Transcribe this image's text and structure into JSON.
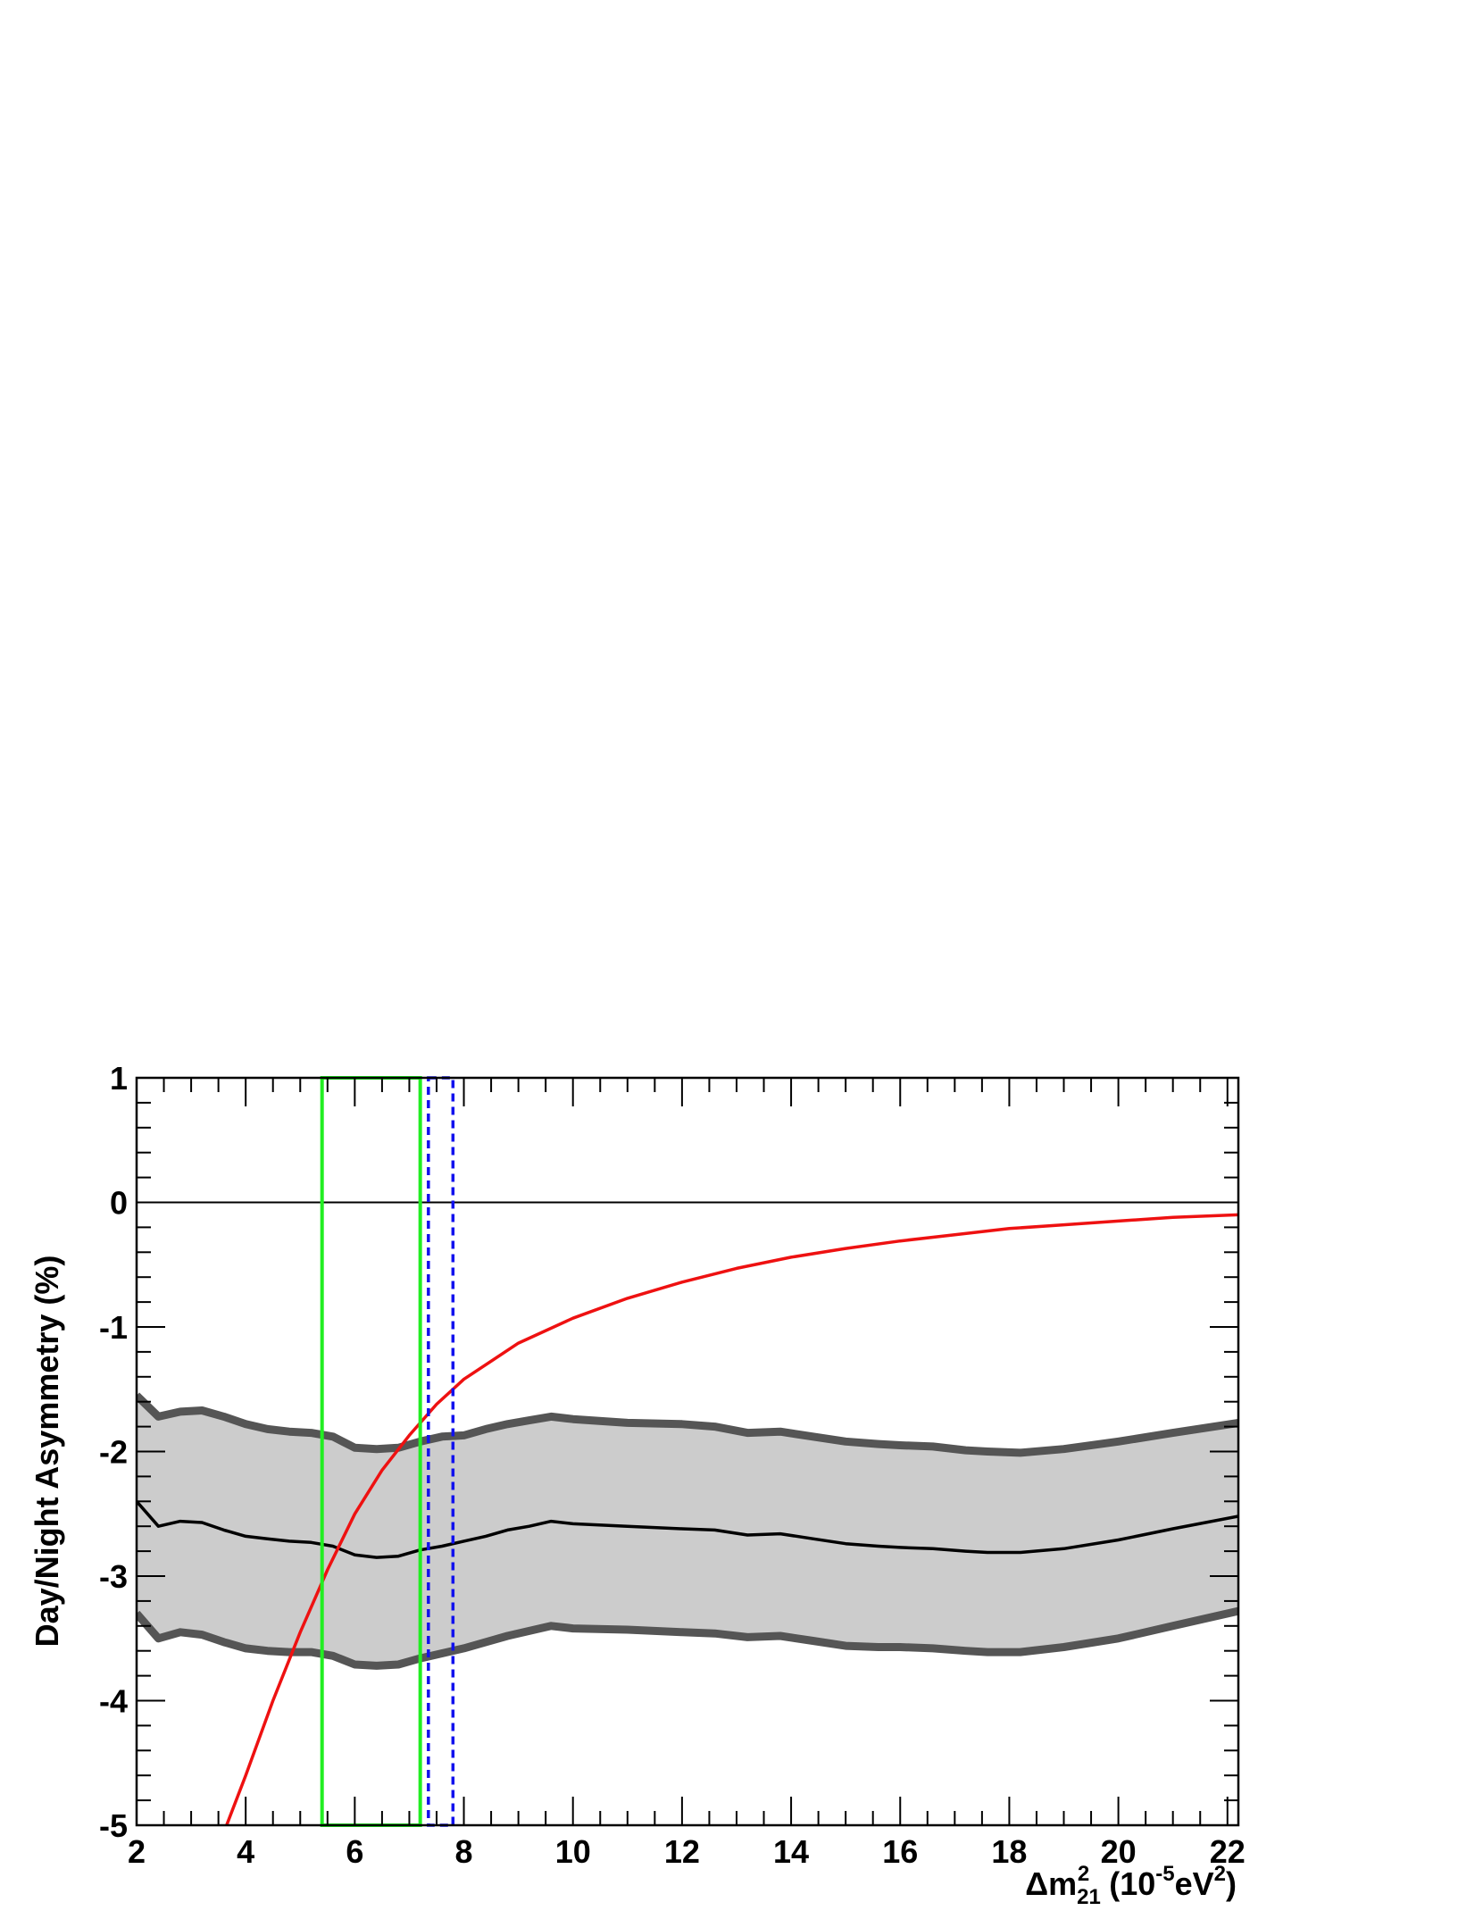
{
  "chart_data": {
    "type": "line",
    "title": "",
    "xlabel": {
      "prefix": "Δm",
      "sup1": "2",
      "sub1": "21",
      "middle": " (10",
      "sup2": "-5",
      "middle2": "eV",
      "sup3": "2",
      "suffix": ")"
    },
    "ylabel": "Day/Night Asymmetry (%)",
    "xlim": [
      2,
      22.2
    ],
    "ylim": [
      -5,
      1
    ],
    "xticks": [
      2,
      4,
      6,
      8,
      10,
      12,
      14,
      16,
      18,
      20,
      22
    ],
    "yticks": [
      -5,
      -4,
      -3,
      -2,
      -1,
      0,
      1
    ],
    "grid": false,
    "colors": {
      "band_fill": "#cccccc",
      "band_edge": "#555555",
      "central": "#000000",
      "red": "#ee1111",
      "green": "#22ee22",
      "blue": "#1111ee"
    },
    "series": [
      {
        "kind": "band_upper",
        "x": [
          2.0,
          2.4,
          2.8,
          3.2,
          3.6,
          4.0,
          4.4,
          4.8,
          5.2,
          5.6,
          6.0,
          6.4,
          6.8,
          7.2,
          7.6,
          8.0,
          8.4,
          8.8,
          9.2,
          9.6,
          10.0,
          11.0,
          12.0,
          12.6,
          13.2,
          13.8,
          14.4,
          15.0,
          15.6,
          16.0,
          16.6,
          17.2,
          17.6,
          18.2,
          19.0,
          20.0,
          21.0,
          22.2
        ],
        "y": [
          -1.55,
          -1.72,
          -1.68,
          -1.67,
          -1.72,
          -1.78,
          -1.82,
          -1.84,
          -1.85,
          -1.88,
          -1.97,
          -1.98,
          -1.97,
          -1.92,
          -1.88,
          -1.87,
          -1.82,
          -1.78,
          -1.75,
          -1.72,
          -1.74,
          -1.77,
          -1.78,
          -1.8,
          -1.85,
          -1.84,
          -1.88,
          -1.92,
          -1.94,
          -1.95,
          -1.96,
          -1.99,
          -2.0,
          -2.01,
          -1.98,
          -1.92,
          -1.85,
          -1.77
        ]
      },
      {
        "kind": "central",
        "x": [
          2.0,
          2.4,
          2.8,
          3.2,
          3.6,
          4.0,
          4.4,
          4.8,
          5.2,
          5.6,
          6.0,
          6.4,
          6.8,
          7.2,
          7.6,
          8.0,
          8.4,
          8.8,
          9.2,
          9.6,
          10.0,
          11.0,
          12.0,
          12.6,
          13.2,
          13.8,
          14.4,
          15.0,
          15.6,
          16.0,
          16.6,
          17.2,
          17.6,
          18.2,
          19.0,
          20.0,
          21.0,
          22.2
        ],
        "y": [
          -2.4,
          -2.6,
          -2.56,
          -2.57,
          -2.63,
          -2.68,
          -2.7,
          -2.72,
          -2.73,
          -2.76,
          -2.83,
          -2.85,
          -2.84,
          -2.79,
          -2.76,
          -2.72,
          -2.68,
          -2.63,
          -2.6,
          -2.56,
          -2.58,
          -2.6,
          -2.62,
          -2.63,
          -2.67,
          -2.66,
          -2.7,
          -2.74,
          -2.76,
          -2.77,
          -2.78,
          -2.8,
          -2.81,
          -2.81,
          -2.78,
          -2.71,
          -2.62,
          -2.52
        ]
      },
      {
        "kind": "band_lower",
        "x": [
          2.0,
          2.4,
          2.8,
          3.2,
          3.6,
          4.0,
          4.4,
          4.8,
          5.2,
          5.6,
          6.0,
          6.4,
          6.8,
          7.2,
          7.6,
          8.0,
          8.4,
          8.8,
          9.2,
          9.6,
          10.0,
          11.0,
          12.0,
          12.6,
          13.2,
          13.8,
          14.4,
          15.0,
          15.6,
          16.0,
          16.6,
          17.2,
          17.6,
          18.2,
          19.0,
          20.0,
          21.0,
          22.2
        ],
        "y": [
          -3.3,
          -3.5,
          -3.45,
          -3.47,
          -3.53,
          -3.58,
          -3.6,
          -3.61,
          -3.61,
          -3.64,
          -3.71,
          -3.72,
          -3.71,
          -3.66,
          -3.62,
          -3.58,
          -3.53,
          -3.48,
          -3.44,
          -3.4,
          -3.42,
          -3.43,
          -3.45,
          -3.46,
          -3.49,
          -3.48,
          -3.52,
          -3.56,
          -3.57,
          -3.57,
          -3.58,
          -3.6,
          -3.61,
          -3.61,
          -3.57,
          -3.5,
          -3.4,
          -3.28
        ]
      },
      {
        "kind": "red_curve",
        "x": [
          3.65,
          4.0,
          4.5,
          5.0,
          5.5,
          6.0,
          6.5,
          7.0,
          7.5,
          8.0,
          9.0,
          10.0,
          11.0,
          12.0,
          13.0,
          14.0,
          15.0,
          16.0,
          17.0,
          18.0,
          19.0,
          20.0,
          21.0,
          22.2
        ],
        "y": [
          -5.0,
          -4.6,
          -4.0,
          -3.45,
          -2.95,
          -2.5,
          -2.15,
          -1.87,
          -1.62,
          -1.42,
          -1.13,
          -0.93,
          -0.77,
          -0.64,
          -0.53,
          -0.44,
          -0.37,
          -0.31,
          -0.26,
          -0.21,
          -0.18,
          -0.15,
          -0.12,
          -0.1
        ]
      }
    ],
    "boxes": [
      {
        "name": "green-box",
        "x1": 5.4,
        "x2": 7.2,
        "y1": -5,
        "y2": 1,
        "style": "solid"
      },
      {
        "name": "blue-box",
        "x1": 7.35,
        "x2": 7.8,
        "y1": -5,
        "y2": 1,
        "style": "dashed"
      }
    ],
    "hline": 0
  }
}
